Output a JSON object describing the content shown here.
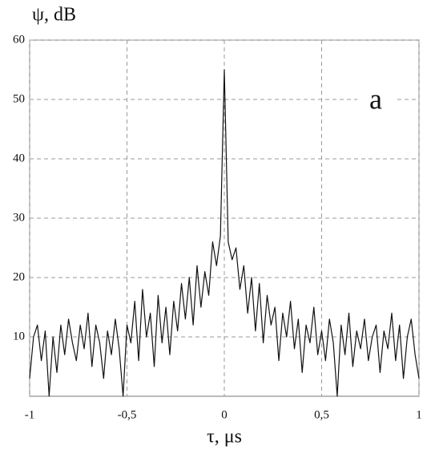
{
  "chart_data": {
    "type": "line",
    "ylabel": "ψ, dB",
    "xlabel": "τ, μs",
    "annotation": "a",
    "x": [
      -1,
      -0.98,
      -0.96,
      -0.94,
      -0.92,
      -0.9,
      -0.88,
      -0.86,
      -0.84,
      -0.82,
      -0.8,
      -0.78,
      -0.76,
      -0.74,
      -0.72,
      -0.7,
      -0.68,
      -0.66,
      -0.64,
      -0.62,
      -0.6,
      -0.58,
      -0.56,
      -0.54,
      -0.52,
      -0.5,
      -0.48,
      -0.46,
      -0.44,
      -0.42,
      -0.4,
      -0.38,
      -0.36,
      -0.34,
      -0.32,
      -0.3,
      -0.28,
      -0.26,
      -0.24,
      -0.22,
      -0.2,
      -0.18,
      -0.16,
      -0.14,
      -0.12,
      -0.1,
      -0.08,
      -0.06,
      -0.04,
      -0.02,
      0,
      0.02,
      0.04,
      0.06,
      0.08,
      0.1,
      0.12,
      0.14,
      0.16,
      0.18,
      0.2,
      0.22,
      0.24,
      0.26,
      0.28,
      0.3,
      0.32,
      0.34,
      0.36,
      0.38,
      0.4,
      0.42,
      0.44,
      0.46,
      0.48,
      0.5,
      0.52,
      0.54,
      0.56,
      0.58,
      0.6,
      0.62,
      0.64,
      0.66,
      0.68,
      0.7,
      0.72,
      0.74,
      0.76,
      0.78,
      0.8,
      0.82,
      0.84,
      0.86,
      0.88,
      0.9,
      0.92,
      0.94,
      0.96,
      0.98,
      1
    ],
    "series": [
      {
        "color": "#111111",
        "values": [
          3,
          10,
          12,
          6,
          11,
          0,
          10,
          4,
          12,
          7,
          13,
          9,
          6,
          12,
          8,
          14,
          5,
          12,
          9,
          3,
          11,
          7,
          13,
          8,
          0,
          12,
          9,
          16,
          6,
          18,
          10,
          14,
          5,
          17,
          9,
          15,
          7,
          16,
          11,
          19,
          13,
          20,
          12,
          22,
          15,
          21,
          17,
          26,
          22,
          27,
          55,
          26,
          23,
          25,
          18,
          22,
          14,
          20,
          11,
          19,
          9,
          17,
          12,
          15,
          6,
          14,
          10,
          16,
          8,
          13,
          4,
          12,
          9,
          15,
          7,
          11,
          6,
          13,
          9,
          0,
          12,
          7,
          14,
          5,
          11,
          8,
          13,
          6,
          10,
          12,
          4,
          11,
          8,
          14,
          6,
          12,
          3,
          10,
          13,
          7,
          3
        ]
      }
    ],
    "xlim": [
      -1,
      1
    ],
    "ylim": [
      0,
      60
    ],
    "xticks": [
      -1,
      {
        "value": -0.5,
        "label": "-0,5"
      },
      0,
      {
        "value": 0.5,
        "label": "0,5"
      },
      1
    ],
    "yticks": [
      10,
      20,
      30,
      40,
      50,
      60
    ],
    "grid": true
  }
}
